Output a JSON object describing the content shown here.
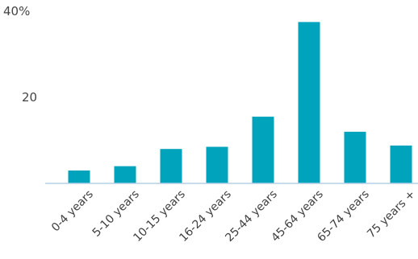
{
  "chart_data": {
    "type": "bar",
    "categories": [
      "0-4 years",
      "5-10 years",
      "10-15 years",
      "16-24 years",
      "25-44 years",
      "45-64 years",
      "65-74 years",
      "75 years +"
    ],
    "values": [
      3,
      4,
      8,
      8.5,
      15.5,
      37.5,
      12,
      8.8
    ],
    "title": "",
    "xlabel": "",
    "ylabel": "",
    "ylim": [
      0,
      40
    ],
    "y_ticks": [
      {
        "value": 20,
        "label": "20"
      },
      {
        "value": 40,
        "label": "40%"
      }
    ],
    "grid": false,
    "colors": {
      "bar": "#00A3BC",
      "axis": "#B7D0E6",
      "tick_text": "#444444",
      "category_text": "#404040"
    }
  }
}
